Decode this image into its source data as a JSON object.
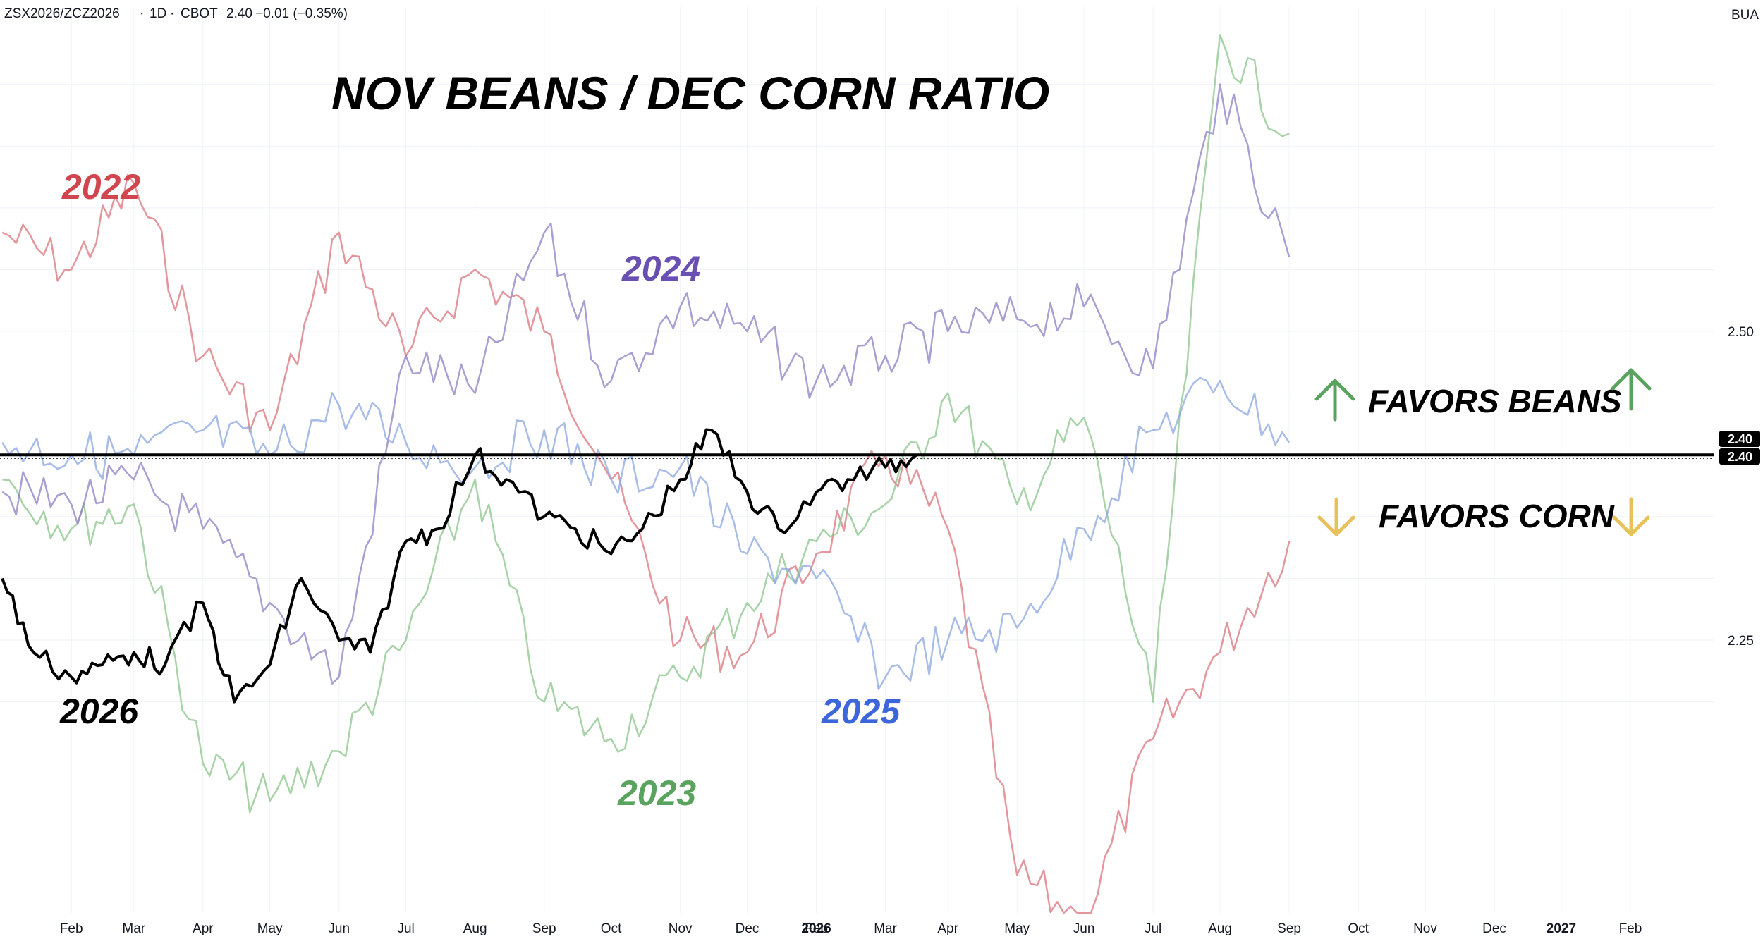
{
  "header": {
    "symbol": "ZSX2026/ZCZ2026",
    "interval": "1D",
    "exchange": "CBOT",
    "last": "2.40",
    "change": "−0.01 (−0.35%)",
    "unit": "BUA"
  },
  "chart_data": {
    "type": "line",
    "title": "NOV BEANS / DEC CORN RATIO",
    "x_ticks": [
      "Feb",
      "Mar",
      "Apr",
      "May",
      "Jun",
      "Jul",
      "Aug",
      "Sep",
      "Oct",
      "Nov",
      "Dec",
      "2026",
      "Feb",
      "Mar",
      "Apr",
      "May",
      "Jun",
      "Jul",
      "Aug",
      "Sep",
      "Oct",
      "Nov",
      "Dec",
      "2027",
      "Feb"
    ],
    "y_ticks": [
      "2.50",
      "2.25"
    ],
    "ylim": [
      2.02,
      2.76
    ],
    "reference_line": {
      "value": 2.4
    },
    "price_badges": [
      "2.40",
      "2.40"
    ],
    "grid": true,
    "annotations": {
      "favors_up": "FAVORS BEANS",
      "favors_down": "FAVORS CORN"
    },
    "series": [
      {
        "name": "2022",
        "color": "#d9747b",
        "x": [
          "2025-01-01",
          "2025-02-01",
          "2025-03-01",
          "2025-04-01",
          "2025-05-01",
          "2025-06-01",
          "2025-07-01",
          "2025-08-01",
          "2025-09-01",
          "2025-10-01",
          "2025-11-01",
          "2025-12-01",
          "2026-01-01",
          "2026-02-01",
          "2026-03-01",
          "2026-04-01",
          "2026-05-01",
          "2026-06-01",
          "2026-07-01",
          "2026-08-01"
        ],
        "values": [
          2.58,
          2.55,
          2.62,
          2.48,
          2.42,
          2.58,
          2.48,
          2.55,
          2.5,
          2.38,
          2.25,
          2.24,
          2.32,
          2.4,
          2.34,
          2.06,
          2.02,
          2.17,
          2.24,
          2.33
        ]
      },
      {
        "name": "2023",
        "color": "#8bc48b",
        "x": [
          "2025-01-01",
          "2025-02-01",
          "2025-03-01",
          "2025-04-01",
          "2025-05-01",
          "2025-06-01",
          "2025-07-01",
          "2025-08-01",
          "2025-09-01",
          "2025-10-01",
          "2025-11-01",
          "2025-12-01",
          "2026-01-01",
          "2026-02-01",
          "2026-03-01",
          "2026-04-01",
          "2026-05-01",
          "2026-06-01",
          "2026-07-01",
          "2026-08-01"
        ],
        "values": [
          2.38,
          2.34,
          2.36,
          2.15,
          2.12,
          2.16,
          2.25,
          2.38,
          2.2,
          2.17,
          2.22,
          2.28,
          2.33,
          2.36,
          2.45,
          2.36,
          2.43,
          2.2,
          2.74,
          2.66
        ]
      },
      {
        "name": "2024",
        "color": "#8d7fc4",
        "x": [
          "2025-01-01",
          "2025-02-01",
          "2025-03-01",
          "2025-04-01",
          "2025-05-01",
          "2025-06-01",
          "2025-07-01",
          "2025-08-01",
          "2025-09-01",
          "2025-10-01",
          "2025-11-01",
          "2025-12-01",
          "2026-01-01",
          "2026-02-01",
          "2026-03-01",
          "2026-04-01",
          "2026-05-01",
          "2026-06-01",
          "2026-07-01",
          "2026-08-01"
        ],
        "values": [
          2.37,
          2.36,
          2.38,
          2.34,
          2.28,
          2.22,
          2.48,
          2.45,
          2.58,
          2.46,
          2.52,
          2.5,
          2.46,
          2.48,
          2.5,
          2.51,
          2.52,
          2.47,
          2.7,
          2.56
        ]
      },
      {
        "name": "2025",
        "color": "#8ba6e0",
        "x": [
          "2025-01-01",
          "2025-02-01",
          "2025-03-01",
          "2025-04-01",
          "2025-05-01",
          "2025-06-01",
          "2025-07-01",
          "2025-08-01",
          "2025-09-01",
          "2025-10-01",
          "2025-11-01",
          "2025-12-01",
          "2026-01-01",
          "2026-02-01",
          "2026-03-01",
          "2026-04-01",
          "2026-05-01",
          "2026-06-01",
          "2026-07-01",
          "2026-08-01"
        ],
        "values": [
          2.41,
          2.4,
          2.4,
          2.42,
          2.4,
          2.44,
          2.41,
          2.39,
          2.42,
          2.38,
          2.39,
          2.32,
          2.3,
          2.22,
          2.25,
          2.26,
          2.34,
          2.42,
          2.46,
          2.41
        ]
      },
      {
        "name": "2026",
        "color": "#000000",
        "x": [
          "2025-01-01",
          "2025-01-15",
          "2025-02-01",
          "2025-02-15",
          "2025-03-01",
          "2025-03-15",
          "2025-04-01",
          "2025-04-15",
          "2025-05-01",
          "2025-05-15",
          "2025-06-01",
          "2025-06-15",
          "2025-07-01",
          "2025-07-15",
          "2025-08-01",
          "2025-08-15",
          "2025-09-01",
          "2025-09-15",
          "2025-10-01",
          "2025-10-15",
          "2025-11-01",
          "2025-11-15",
          "2025-12-01",
          "2025-12-15",
          "2026-01-01",
          "2026-01-15",
          "2026-02-01",
          "2026-02-15"
        ],
        "values": [
          2.3,
          2.24,
          2.22,
          2.23,
          2.24,
          2.23,
          2.28,
          2.2,
          2.23,
          2.3,
          2.25,
          2.24,
          2.33,
          2.34,
          2.4,
          2.38,
          2.35,
          2.34,
          2.32,
          2.34,
          2.38,
          2.42,
          2.37,
          2.34,
          2.37,
          2.38,
          2.39,
          2.4
        ]
      }
    ]
  }
}
